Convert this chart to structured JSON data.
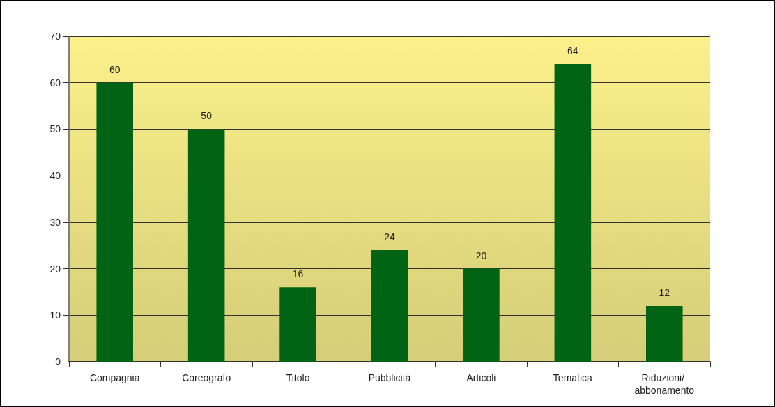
{
  "chart_data": {
    "type": "bar",
    "categories": [
      "Compagnia",
      "Coreografo",
      "Titolo",
      "Pubblicità",
      "Articoli",
      "Tematica",
      "Riduzioni/ abbonamento"
    ],
    "values": [
      60,
      50,
      16,
      24,
      20,
      64,
      12
    ],
    "color": "#006414",
    "ylim": [
      0,
      70
    ],
    "yticks": [
      0,
      10,
      20,
      30,
      40,
      50,
      60,
      70
    ],
    "grid": "y",
    "data_labels": true
  }
}
